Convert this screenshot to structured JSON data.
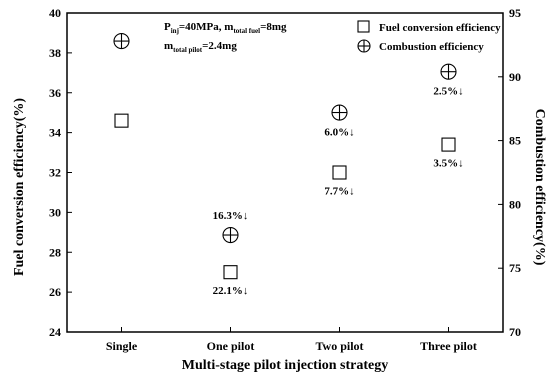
{
  "chart_data": {
    "type": "scatter",
    "categories": [
      "Single",
      "One pilot",
      "Two pilot",
      "Three pilot"
    ],
    "xlabel": "Multi-stage pilot injection strategy",
    "ylabel": "Fuel conversion efficiency(%)",
    "y2label": "Combustion efficiency(%)",
    "ylim": [
      24,
      40
    ],
    "y2lim": [
      70,
      95
    ],
    "yticks": [
      24,
      26,
      28,
      30,
      32,
      34,
      36,
      38,
      40
    ],
    "y2ticks": [
      70,
      75,
      80,
      85,
      90,
      95
    ],
    "grid": false,
    "legend_position": "top-right",
    "series": [
      {
        "name": "Fuel conversion efficiency",
        "axis": "left",
        "marker": "open-square",
        "values": [
          34.6,
          27.0,
          32.0,
          33.4
        ],
        "annotations": [
          "",
          "22.1%↓",
          "7.7%↓",
          "3.5%↓"
        ]
      },
      {
        "name": "Combustion efficiency",
        "axis": "right",
        "marker": "circle-plus",
        "values": [
          92.8,
          77.6,
          87.2,
          90.4
        ],
        "annotations": [
          "",
          "16.3%↓",
          "6.0%↓",
          "2.5%↓"
        ]
      }
    ],
    "condition": {
      "line1": {
        "p": "P",
        "p_sub": "inj",
        "mid": "=40MPa, m",
        "m_sub": "total fuel",
        "end": "=8mg"
      },
      "line2": {
        "m": "m",
        "m_sub": "total pilot",
        "end": "=2.4mg"
      }
    }
  }
}
